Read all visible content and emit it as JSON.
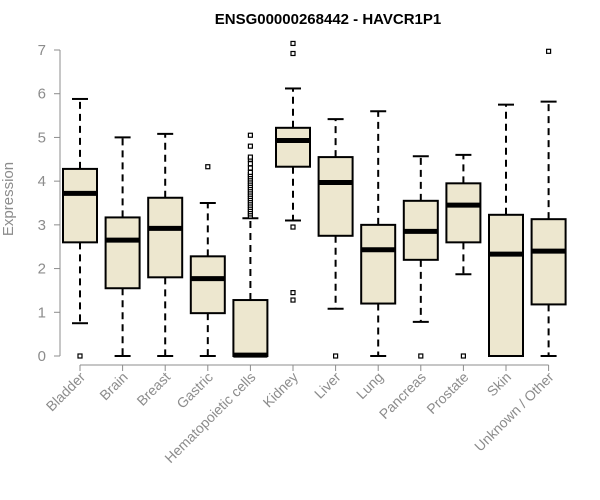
{
  "chart_data": {
    "type": "boxplot",
    "title": "ENSG00000268442 - HAVCR1P1",
    "xlabel": "",
    "ylabel": "Expression",
    "ylim": [
      0,
      7
    ],
    "yticks": [
      0,
      1,
      2,
      3,
      4,
      5,
      6,
      7
    ],
    "box_fill": "#ede7cf",
    "categories": [
      "Bladder",
      "Brain",
      "Breast",
      "Gastric",
      "Hematopoietic cells",
      "Kidney",
      "Liver",
      "Lung",
      "Pancreas",
      "Prostate",
      "Skin",
      "Unknown / Other"
    ],
    "boxes": [
      {
        "whisker_low": 0.75,
        "q1": 2.6,
        "median": 3.72,
        "q3": 4.28,
        "whisker_high": 5.88,
        "outliers": [
          0.0
        ]
      },
      {
        "whisker_low": 0.0,
        "q1": 1.55,
        "median": 2.65,
        "q3": 3.17,
        "whisker_high": 5.0,
        "outliers": []
      },
      {
        "whisker_low": 0.0,
        "q1": 1.8,
        "median": 2.92,
        "q3": 3.62,
        "whisker_high": 5.08,
        "outliers": []
      },
      {
        "whisker_low": 0.0,
        "q1": 0.98,
        "median": 1.77,
        "q3": 2.28,
        "whisker_high": 3.5,
        "outliers": [
          4.33
        ]
      },
      {
        "whisker_low": 0.0,
        "q1": 0.0,
        "median": 0.02,
        "q3": 1.28,
        "whisker_high": 3.15,
        "outliers": [
          3.2,
          3.25,
          3.3,
          3.35,
          3.4,
          3.45,
          3.5,
          3.55,
          3.6,
          3.65,
          3.7,
          3.75,
          3.8,
          3.85,
          3.9,
          3.95,
          4.0,
          4.05,
          4.1,
          4.15,
          4.2,
          4.3,
          4.4,
          4.5,
          4.55,
          4.8,
          5.05
        ]
      },
      {
        "whisker_low": 3.1,
        "q1": 4.33,
        "median": 4.93,
        "q3": 5.22,
        "whisker_high": 6.12,
        "outliers": [
          7.15,
          6.92,
          2.95,
          1.45,
          1.28
        ]
      },
      {
        "whisker_low": 1.08,
        "q1": 2.75,
        "median": 3.97,
        "q3": 4.55,
        "whisker_high": 5.42,
        "outliers": [
          0.0
        ]
      },
      {
        "whisker_low": 0.0,
        "q1": 1.2,
        "median": 2.43,
        "q3": 3.0,
        "whisker_high": 5.6,
        "outliers": []
      },
      {
        "whisker_low": 0.78,
        "q1": 2.2,
        "median": 2.85,
        "q3": 3.55,
        "whisker_high": 4.57,
        "outliers": [
          0.0
        ]
      },
      {
        "whisker_low": 1.87,
        "q1": 2.6,
        "median": 3.45,
        "q3": 3.95,
        "whisker_high": 4.6,
        "outliers": [
          0.0
        ]
      },
      {
        "whisker_low": 0.0,
        "q1": 0.0,
        "median": 2.33,
        "q3": 3.23,
        "whisker_high": 5.75,
        "outliers": []
      },
      {
        "whisker_low": 0.0,
        "q1": 1.18,
        "median": 2.4,
        "q3": 3.13,
        "whisker_high": 5.82,
        "outliers": [
          6.97
        ]
      }
    ]
  }
}
